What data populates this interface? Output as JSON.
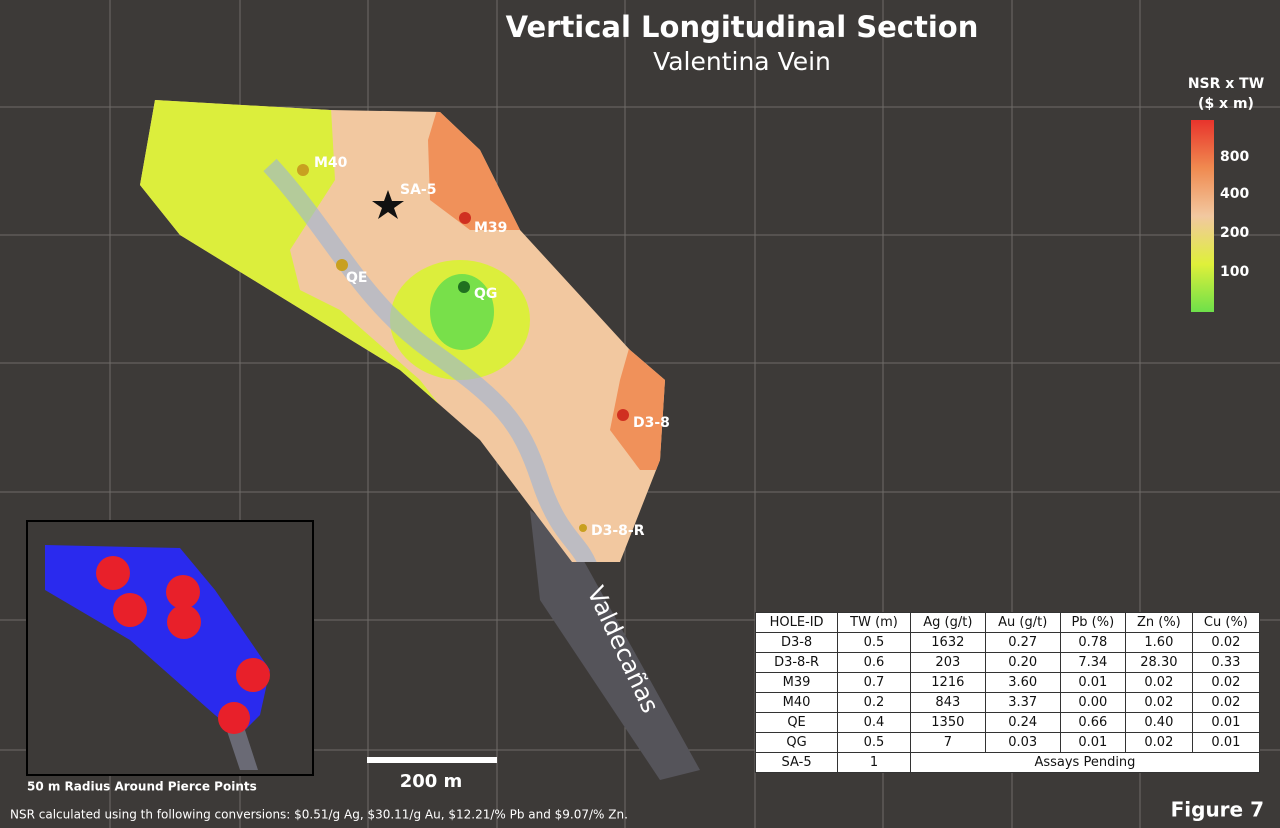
{
  "title": "Vertical Longitudinal Section",
  "subtitle": "Valentina Vein",
  "legend": {
    "title_lines": [
      "NSR x TW",
      "($ x m)"
    ],
    "labels": [
      "800",
      "400",
      "200",
      "100"
    ]
  },
  "holes": [
    {
      "label": "M40"
    },
    {
      "label": "SA-5"
    },
    {
      "label": "M39"
    },
    {
      "label": "QE"
    },
    {
      "label": "QG"
    },
    {
      "label": "D3-8"
    },
    {
      "label": "D3-8-R"
    }
  ],
  "structure_label": "Valdecañas",
  "inset_caption": "50 m Radius Around Pierce Points",
  "scale_label": "200 m",
  "table": {
    "header": [
      "HOLE-ID",
      "TW (m)",
      "Ag (g/t)",
      "Au (g/t)",
      "Pb (%)",
      "Zn (%)",
      "Cu (%)"
    ],
    "rows": [
      [
        "D3-8",
        "0.5",
        "1632",
        "0.27",
        "0.78",
        "1.60",
        "0.02"
      ],
      [
        "D3-8-R",
        "0.6",
        "203",
        "0.20",
        "7.34",
        "28.30",
        "0.33"
      ],
      [
        "M39",
        "0.7",
        "1216",
        "3.60",
        "0.01",
        "0.02",
        "0.02"
      ],
      [
        "M40",
        "0.2",
        "843",
        "3.37",
        "0.00",
        "0.02",
        "0.02"
      ],
      [
        "QE",
        "0.4",
        "1350",
        "0.24",
        "0.66",
        "0.40",
        "0.01"
      ],
      [
        "QG",
        "0.5",
        "7",
        "0.03",
        "0.01",
        "0.02",
        "0.01"
      ],
      [
        "SA-5",
        "1",
        "Assays Pending"
      ]
    ]
  },
  "footnote": "NSR calculated using th following conversions: $0.51/g Ag, $30.11/g Au,  $12.21/% Pb and $9.07/% Zn.",
  "figure_label": "Figure 7"
}
